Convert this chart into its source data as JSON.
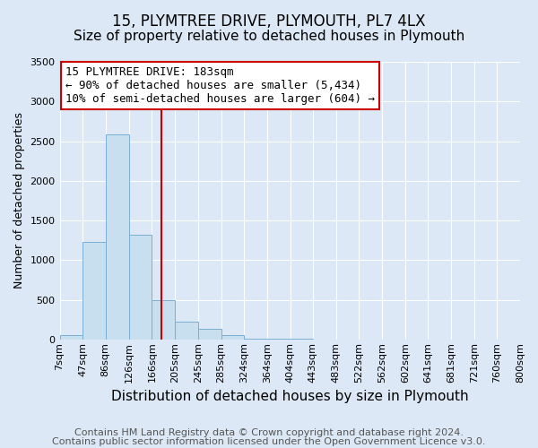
{
  "title": "15, PLYMTREE DRIVE, PLYMOUTH, PL7 4LX",
  "subtitle": "Size of property relative to detached houses in Plymouth",
  "xlabel": "Distribution of detached houses by size in Plymouth",
  "ylabel": "Number of detached properties",
  "footer_line1": "Contains HM Land Registry data © Crown copyright and database right 2024.",
  "footer_line2": "Contains public sector information licensed under the Open Government Licence v3.0.",
  "bin_edges": [
    7,
    47,
    86,
    126,
    166,
    205,
    245,
    285,
    324,
    364,
    404,
    443,
    483,
    522,
    562,
    602,
    641,
    681,
    721,
    760,
    800
  ],
  "bar_heights": [
    50,
    1230,
    2580,
    1320,
    500,
    220,
    130,
    50,
    15,
    8,
    5,
    3,
    0,
    0,
    0,
    0,
    0,
    0,
    0,
    0
  ],
  "bar_color": "#c8dff0",
  "bar_edgecolor": "#7bafd4",
  "property_size": 183,
  "vline_color": "#cc0000",
  "annotation_line1": "15 PLYMTREE DRIVE: 183sqm",
  "annotation_line2": "← 90% of detached houses are smaller (5,434)",
  "annotation_line3": "10% of semi-detached houses are larger (604) →",
  "annotation_box_edgecolor": "#cc0000",
  "ylim": [
    0,
    3500
  ],
  "yticks": [
    0,
    500,
    1000,
    1500,
    2000,
    2500,
    3000,
    3500
  ],
  "bg_color": "#dce8f5",
  "title_fontsize": 12,
  "subtitle_fontsize": 11,
  "xlabel_fontsize": 11,
  "ylabel_fontsize": 9,
  "tick_label_fontsize": 8,
  "annotation_fontsize": 9,
  "footer_fontsize": 8,
  "footer_color": "#555555"
}
